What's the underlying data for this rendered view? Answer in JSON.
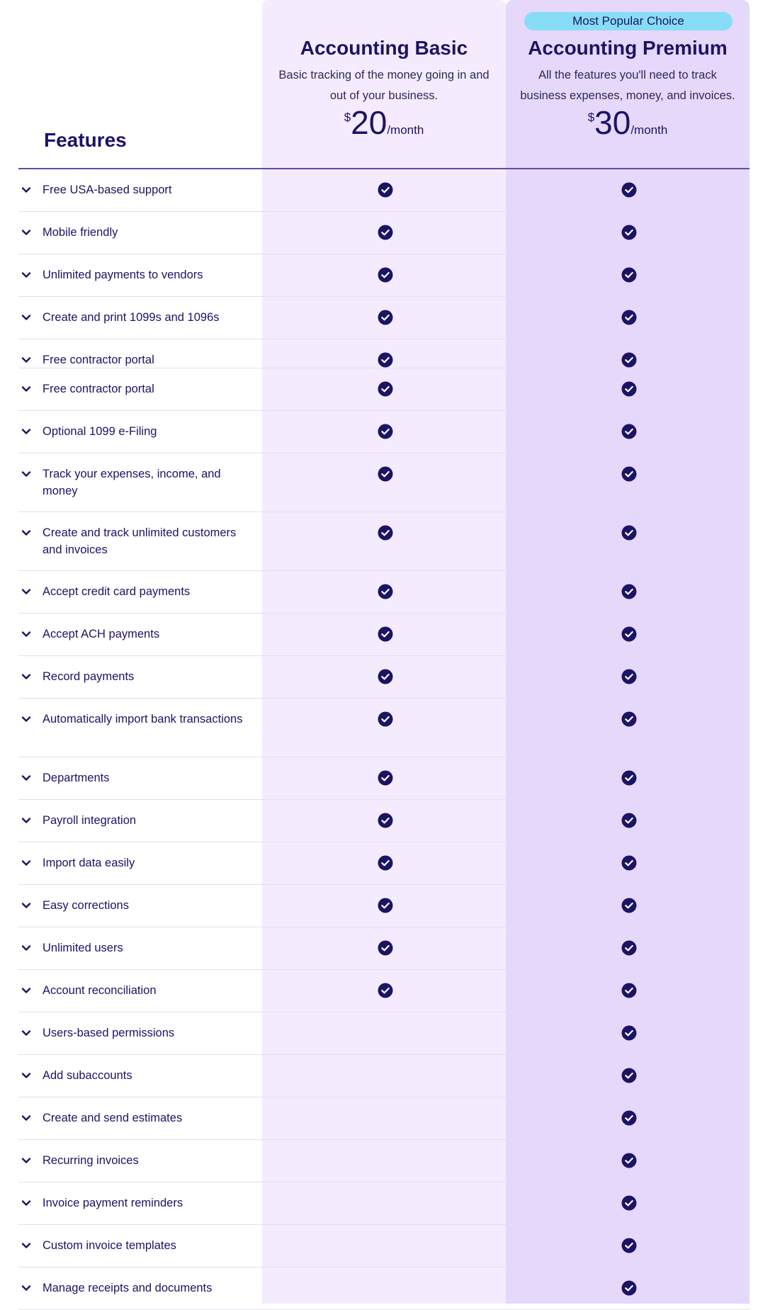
{
  "header": {
    "features_title": "Features",
    "basic": {
      "name": "Accounting Basic",
      "description": "Basic tracking of the money going in and out of your business.",
      "currency": "$",
      "price": "20",
      "period": "/month"
    },
    "premium": {
      "badge": "Most Popular Choice",
      "name": "Accounting Premium",
      "description": "All the features you'll need to track business expenses, money, and invoices.",
      "currency": "$",
      "price": "30",
      "period": "/month"
    }
  },
  "colors": {
    "navy": "#1b1464",
    "basic_column": "#f4ecfe",
    "premium_column": "#e6d8fb",
    "badge": "#87ddf7"
  },
  "icons": {
    "chevron": "chevron-down-icon",
    "check": "check-circle-icon"
  },
  "features": [
    {
      "label": "Free USA-based support",
      "basic": true,
      "premium": true
    },
    {
      "label": "Mobile friendly",
      "basic": true,
      "premium": true
    },
    {
      "label": "Unlimited payments to vendors",
      "basic": true,
      "premium": true
    },
    {
      "label": "Create and print 1099s and 1096s",
      "basic": true,
      "premium": true
    },
    {
      "label": "Free contractor portal",
      "basic": true,
      "premium": true,
      "clipped": true
    },
    {
      "label": "Free contractor portal",
      "basic": true,
      "premium": true
    },
    {
      "label": "Optional 1099 e-Filing",
      "basic": true,
      "premium": true
    },
    {
      "label": "Track your expenses, income, and money",
      "basic": true,
      "premium": true
    },
    {
      "label": "Create and track unlimited customers and invoices",
      "basic": true,
      "premium": true
    },
    {
      "label": "Accept credit card payments",
      "basic": true,
      "premium": true
    },
    {
      "label": "Accept ACH payments",
      "basic": true,
      "premium": true
    },
    {
      "label": "Record payments",
      "basic": true,
      "premium": true
    },
    {
      "label": "Automatically import bank transactions",
      "basic": true,
      "premium": true
    },
    {
      "label": "Departments",
      "basic": true,
      "premium": true
    },
    {
      "label": "Payroll integration",
      "basic": true,
      "premium": true
    },
    {
      "label": "Import data easily",
      "basic": true,
      "premium": true
    },
    {
      "label": "Easy corrections",
      "basic": true,
      "premium": true
    },
    {
      "label": "Unlimited users",
      "basic": true,
      "premium": true
    },
    {
      "label": "Account reconciliation",
      "basic": true,
      "premium": true
    },
    {
      "label": "Users-based permissions",
      "basic": false,
      "premium": true
    },
    {
      "label": "Add subaccounts",
      "basic": false,
      "premium": true
    },
    {
      "label": "Create and send estimates",
      "basic": false,
      "premium": true
    },
    {
      "label": "Recurring invoices",
      "basic": false,
      "premium": true
    },
    {
      "label": "Invoice payment reminders",
      "basic": false,
      "premium": true
    },
    {
      "label": "Custom invoice templates",
      "basic": false,
      "premium": true
    },
    {
      "label": "Manage receipts and documents",
      "basic": false,
      "premium": true
    }
  ]
}
